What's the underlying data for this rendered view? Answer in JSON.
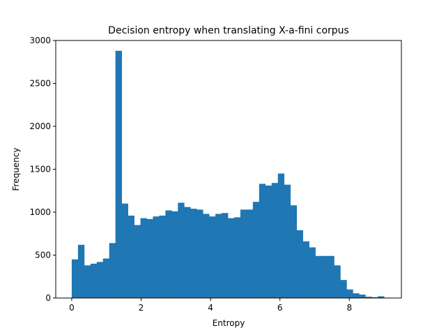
{
  "chart_data": {
    "type": "bar",
    "title": "Decision entropy when translating X-a-fini corpus",
    "xlabel": "Entropy",
    "ylabel": "Frequency",
    "xlim": [
      -0.46,
      9.5
    ],
    "ylim": [
      0,
      3000
    ],
    "x_ticks": [
      0,
      2,
      4,
      6,
      8
    ],
    "y_ticks": [
      0,
      500,
      1000,
      1500,
      2000,
      2500,
      3000
    ],
    "grid": false,
    "bin_start": 0.0,
    "bin_width": 0.18,
    "values": [
      450,
      620,
      380,
      400,
      420,
      460,
      640,
      2880,
      1100,
      960,
      850,
      930,
      920,
      950,
      960,
      1020,
      1010,
      1110,
      1060,
      1040,
      1030,
      980,
      950,
      980,
      990,
      930,
      940,
      1030,
      1030,
      1120,
      1330,
      1310,
      1340,
      1450,
      1320,
      1080,
      790,
      660,
      590,
      490,
      490,
      490,
      380,
      210,
      100,
      55,
      40,
      15,
      10,
      20
    ],
    "bar_color": "#1f77b4"
  }
}
